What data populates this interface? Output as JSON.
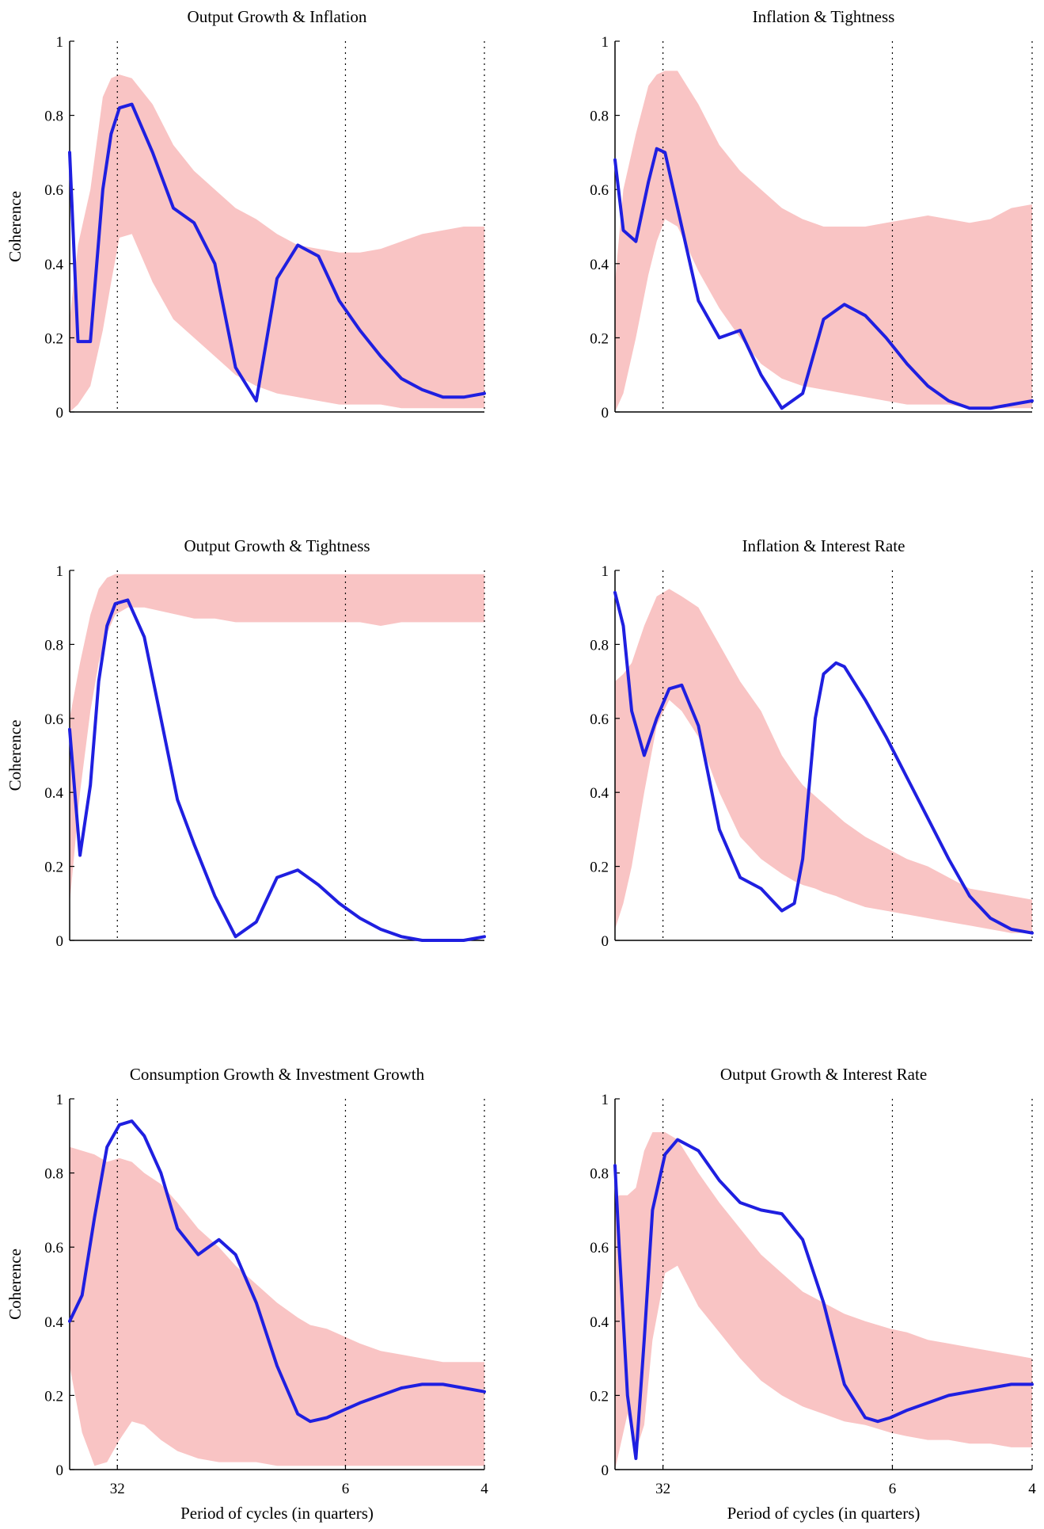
{
  "chart_data": [
    {
      "type": "line",
      "title": "Output Growth & Inflation",
      "xlabel": "",
      "ylabel": "Coherence",
      "x_reference_lines": [
        "32",
        "6",
        "4"
      ],
      "xtick_labels": [],
      "ylim": [
        0,
        1
      ],
      "yticks": [
        "0",
        "0.2",
        "0.4",
        "0.6",
        "0.8",
        "1"
      ],
      "grid": false,
      "legend": "none",
      "colors": {
        "line": "#1f1fe0",
        "band": "#f9c4c4",
        "reference": "#000000"
      },
      "x": [
        0,
        0.02,
        0.05,
        0.08,
        0.1,
        0.12,
        0.15,
        0.2,
        0.25,
        0.3,
        0.35,
        0.4,
        0.45,
        0.5,
        0.55,
        0.6,
        0.65,
        0.7,
        0.75,
        0.8,
        0.85,
        0.9,
        0.95,
        1
      ],
      "series": [
        {
          "values": [
            0.7,
            0.19,
            0.19,
            0.6,
            0.75,
            0.82,
            0.83,
            0.7,
            0.55,
            0.51,
            0.4,
            0.12,
            0.03,
            0.36,
            0.45,
            0.42,
            0.3,
            0.22,
            0.15,
            0.09,
            0.06,
            0.04,
            0.04,
            0.05
          ]
        }
      ],
      "band": {
        "upper": [
          0.25,
          0.45,
          0.6,
          0.85,
          0.9,
          0.91,
          0.9,
          0.83,
          0.72,
          0.65,
          0.6,
          0.55,
          0.52,
          0.48,
          0.45,
          0.44,
          0.43,
          0.43,
          0.44,
          0.46,
          0.48,
          0.49,
          0.5,
          0.5
        ],
        "lower": [
          0,
          0.02,
          0.07,
          0.22,
          0.35,
          0.47,
          0.48,
          0.35,
          0.25,
          0.2,
          0.15,
          0.1,
          0.07,
          0.05,
          0.04,
          0.03,
          0.02,
          0.02,
          0.02,
          0.01,
          0.01,
          0.01,
          0.01,
          0.01
        ]
      }
    },
    {
      "type": "line",
      "title": "Inflation & Tightness",
      "xlabel": "",
      "ylabel": "",
      "x_reference_lines": [
        "32",
        "6",
        "4"
      ],
      "xtick_labels": [],
      "ylim": [
        0,
        1
      ],
      "yticks": [
        "0",
        "0.2",
        "0.4",
        "0.6",
        "0.8",
        "1"
      ],
      "grid": false,
      "legend": "none",
      "colors": {
        "line": "#1f1fe0",
        "band": "#f9c4c4",
        "reference": "#000000"
      },
      "x": [
        0,
        0.02,
        0.05,
        0.08,
        0.1,
        0.12,
        0.15,
        0.2,
        0.25,
        0.3,
        0.35,
        0.4,
        0.45,
        0.5,
        0.55,
        0.6,
        0.65,
        0.7,
        0.75,
        0.8,
        0.85,
        0.9,
        0.95,
        1
      ],
      "series": [
        {
          "values": [
            0.68,
            0.49,
            0.46,
            0.62,
            0.71,
            0.7,
            0.55,
            0.3,
            0.2,
            0.22,
            0.1,
            0.01,
            0.05,
            0.25,
            0.29,
            0.26,
            0.2,
            0.13,
            0.07,
            0.03,
            0.01,
            0.01,
            0.02,
            0.03
          ]
        }
      ],
      "band": {
        "upper": [
          0.35,
          0.6,
          0.75,
          0.88,
          0.91,
          0.92,
          0.92,
          0.83,
          0.72,
          0.65,
          0.6,
          0.55,
          0.52,
          0.5,
          0.5,
          0.5,
          0.51,
          0.52,
          0.53,
          0.52,
          0.51,
          0.52,
          0.55,
          0.56
        ],
        "lower": [
          0,
          0.05,
          0.2,
          0.37,
          0.46,
          0.52,
          0.5,
          0.38,
          0.28,
          0.2,
          0.13,
          0.09,
          0.07,
          0.06,
          0.05,
          0.04,
          0.03,
          0.02,
          0.02,
          0.02,
          0.01,
          0.01,
          0.01,
          0.01
        ]
      }
    },
    {
      "type": "line",
      "title": "Output Growth & Tightness",
      "xlabel": "",
      "ylabel": "Coherence",
      "x_reference_lines": [
        "32",
        "6",
        "4"
      ],
      "xtick_labels": [],
      "ylim": [
        0,
        1
      ],
      "yticks": [
        "0",
        "0.2",
        "0.4",
        "0.6",
        "0.8",
        "1"
      ],
      "grid": false,
      "legend": "none",
      "colors": {
        "line": "#1f1fe0",
        "band": "#f9c4c4",
        "reference": "#000000"
      },
      "x": [
        0,
        0.025,
        0.05,
        0.07,
        0.09,
        0.11,
        0.14,
        0.18,
        0.22,
        0.26,
        0.3,
        0.35,
        0.4,
        0.45,
        0.5,
        0.55,
        0.6,
        0.65,
        0.7,
        0.75,
        0.8,
        0.85,
        0.9,
        0.95,
        1
      ],
      "series": [
        {
          "values": [
            0.57,
            0.23,
            0.42,
            0.7,
            0.85,
            0.91,
            0.92,
            0.82,
            0.6,
            0.38,
            0.26,
            0.12,
            0.01,
            0.05,
            0.17,
            0.19,
            0.15,
            0.1,
            0.06,
            0.03,
            0.01,
            0.0,
            0.0,
            0.0,
            0.01
          ]
        }
      ],
      "band": {
        "upper": [
          0.6,
          0.75,
          0.88,
          0.95,
          0.98,
          0.99,
          0.99,
          0.99,
          0.99,
          0.99,
          0.99,
          0.99,
          0.99,
          0.99,
          0.99,
          0.99,
          0.99,
          0.99,
          0.99,
          0.99,
          0.99,
          0.99,
          0.99,
          0.99,
          0.99
        ],
        "lower": [
          0.1,
          0.4,
          0.62,
          0.75,
          0.83,
          0.88,
          0.9,
          0.9,
          0.89,
          0.88,
          0.87,
          0.87,
          0.86,
          0.86,
          0.86,
          0.86,
          0.86,
          0.86,
          0.86,
          0.85,
          0.86,
          0.86,
          0.86,
          0.86,
          0.86
        ]
      }
    },
    {
      "type": "line",
      "title": "Inflation & Interest Rate",
      "xlabel": "",
      "ylabel": "",
      "x_reference_lines": [
        "32",
        "6",
        "4"
      ],
      "xtick_labels": [],
      "ylim": [
        0,
        1
      ],
      "yticks": [
        "0",
        "0.2",
        "0.4",
        "0.6",
        "0.8",
        "1"
      ],
      "grid": false,
      "legend": "none",
      "colors": {
        "line": "#1f1fe0",
        "band": "#f9c4c4",
        "reference": "#000000"
      },
      "x": [
        0,
        0.02,
        0.04,
        0.07,
        0.1,
        0.13,
        0.16,
        0.2,
        0.25,
        0.3,
        0.35,
        0.4,
        0.43,
        0.45,
        0.48,
        0.5,
        0.53,
        0.55,
        0.6,
        0.65,
        0.7,
        0.75,
        0.8,
        0.85,
        0.9,
        0.95,
        1
      ],
      "series": [
        {
          "values": [
            0.94,
            0.85,
            0.62,
            0.5,
            0.6,
            0.68,
            0.69,
            0.58,
            0.3,
            0.17,
            0.14,
            0.08,
            0.1,
            0.22,
            0.6,
            0.72,
            0.75,
            0.74,
            0.65,
            0.55,
            0.44,
            0.33,
            0.22,
            0.12,
            0.06,
            0.03,
            0.02
          ]
        }
      ],
      "band": {
        "upper": [
          0.7,
          0.72,
          0.75,
          0.85,
          0.93,
          0.95,
          0.93,
          0.9,
          0.8,
          0.7,
          0.62,
          0.5,
          0.45,
          0.42,
          0.39,
          0.37,
          0.34,
          0.32,
          0.28,
          0.25,
          0.22,
          0.2,
          0.17,
          0.14,
          0.13,
          0.12,
          0.11
        ],
        "lower": [
          0.03,
          0.1,
          0.2,
          0.4,
          0.58,
          0.65,
          0.62,
          0.55,
          0.4,
          0.28,
          0.22,
          0.18,
          0.16,
          0.15,
          0.14,
          0.13,
          0.12,
          0.11,
          0.09,
          0.08,
          0.07,
          0.06,
          0.05,
          0.04,
          0.03,
          0.02,
          0.02
        ]
      }
    },
    {
      "type": "line",
      "title": "Consumption Growth & Investment Growth",
      "xlabel": "Period of cycles (in quarters)",
      "ylabel": "Coherence",
      "x_reference_lines": [
        "32",
        "6",
        "4"
      ],
      "xtick_labels": [
        "32",
        "6",
        "4"
      ],
      "ylim": [
        0,
        1
      ],
      "yticks": [
        "0",
        "0.2",
        "0.4",
        "0.6",
        "0.8",
        "1"
      ],
      "grid": false,
      "legend": "none",
      "colors": {
        "line": "#1f1fe0",
        "band": "#f9c4c4",
        "reference": "#000000"
      },
      "x": [
        0,
        0.03,
        0.06,
        0.09,
        0.12,
        0.15,
        0.18,
        0.22,
        0.26,
        0.31,
        0.36,
        0.4,
        0.45,
        0.5,
        0.55,
        0.58,
        0.62,
        0.66,
        0.7,
        0.75,
        0.8,
        0.85,
        0.9,
        0.95,
        1
      ],
      "series": [
        {
          "values": [
            0.4,
            0.47,
            0.68,
            0.87,
            0.93,
            0.94,
            0.9,
            0.8,
            0.65,
            0.58,
            0.62,
            0.58,
            0.45,
            0.28,
            0.15,
            0.13,
            0.14,
            0.16,
            0.18,
            0.2,
            0.22,
            0.23,
            0.23,
            0.22,
            0.21
          ]
        }
      ],
      "band": {
        "upper": [
          0.87,
          0.86,
          0.85,
          0.83,
          0.84,
          0.83,
          0.8,
          0.77,
          0.72,
          0.65,
          0.6,
          0.55,
          0.5,
          0.45,
          0.41,
          0.39,
          0.38,
          0.36,
          0.34,
          0.32,
          0.31,
          0.3,
          0.29,
          0.29,
          0.29
        ],
        "lower": [
          0.28,
          0.1,
          0.01,
          0.02,
          0.08,
          0.13,
          0.12,
          0.08,
          0.05,
          0.03,
          0.02,
          0.02,
          0.02,
          0.01,
          0.01,
          0.01,
          0.01,
          0.01,
          0.01,
          0.01,
          0.01,
          0.01,
          0.01,
          0.01,
          0.01
        ]
      }
    },
    {
      "type": "line",
      "title": "Output Growth & Interest Rate",
      "xlabel": "Period of cycles (in quarters)",
      "ylabel": "",
      "x_reference_lines": [
        "32",
        "6",
        "4"
      ],
      "xtick_labels": [
        "32",
        "6",
        "4"
      ],
      "ylim": [
        0,
        1
      ],
      "yticks": [
        "0",
        "0.2",
        "0.4",
        "0.6",
        "0.8",
        "1"
      ],
      "grid": false,
      "legend": "none",
      "colors": {
        "line": "#1f1fe0",
        "band": "#f9c4c4",
        "reference": "#000000"
      },
      "x": [
        0,
        0.01,
        0.03,
        0.05,
        0.07,
        0.09,
        0.12,
        0.15,
        0.2,
        0.25,
        0.3,
        0.35,
        0.4,
        0.45,
        0.5,
        0.55,
        0.6,
        0.63,
        0.66,
        0.7,
        0.75,
        0.8,
        0.85,
        0.9,
        0.95,
        1
      ],
      "series": [
        {
          "values": [
            0.82,
            0.6,
            0.2,
            0.03,
            0.35,
            0.7,
            0.85,
            0.89,
            0.86,
            0.78,
            0.72,
            0.7,
            0.69,
            0.62,
            0.45,
            0.23,
            0.14,
            0.13,
            0.14,
            0.16,
            0.18,
            0.2,
            0.21,
            0.22,
            0.23,
            0.23
          ]
        }
      ],
      "band": {
        "upper": [
          0.73,
          0.74,
          0.74,
          0.76,
          0.86,
          0.91,
          0.91,
          0.89,
          0.8,
          0.72,
          0.65,
          0.58,
          0.53,
          0.48,
          0.45,
          0.42,
          0.4,
          0.39,
          0.38,
          0.37,
          0.35,
          0.34,
          0.33,
          0.32,
          0.31,
          0.3
        ],
        "lower": [
          0.0,
          0.05,
          0.15,
          0.05,
          0.12,
          0.35,
          0.53,
          0.55,
          0.44,
          0.37,
          0.3,
          0.24,
          0.2,
          0.17,
          0.15,
          0.13,
          0.12,
          0.11,
          0.1,
          0.09,
          0.08,
          0.08,
          0.07,
          0.07,
          0.06,
          0.06
        ]
      }
    }
  ]
}
